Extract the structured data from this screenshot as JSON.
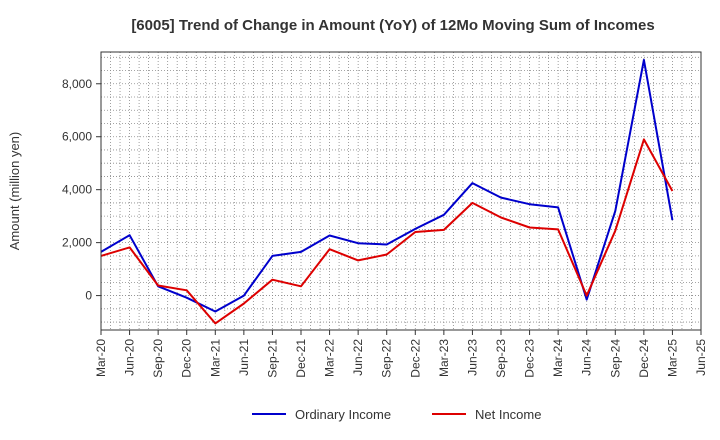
{
  "chart_data": {
    "type": "line",
    "title": "[6005]  Trend of Change in Amount (YoY) of 12Mo Moving Sum of Incomes",
    "ylabel": "Amount (million yen)",
    "xlabel": "",
    "ylim": [
      -1300,
      9200
    ],
    "yticks": [
      0,
      2000,
      4000,
      6000,
      8000
    ],
    "ytick_labels": [
      "0",
      "2,000",
      "4,000",
      "6,000",
      "8,000"
    ],
    "categories": [
      "Mar-20",
      "Jun-20",
      "Sep-20",
      "Dec-20",
      "Mar-21",
      "Jun-21",
      "Sep-21",
      "Dec-21",
      "Mar-22",
      "Jun-22",
      "Sep-22",
      "Dec-22",
      "Mar-23",
      "Jun-23",
      "Sep-23",
      "Dec-23",
      "Mar-24",
      "Jun-24",
      "Sep-24",
      "Dec-24",
      "Mar-25",
      "Jun-25"
    ],
    "grid": true,
    "legend_position": "bottom",
    "series": [
      {
        "name": "Ordinary Income",
        "color": "#0000cc",
        "values": [
          1650,
          2280,
          350,
          -80,
          -600,
          0,
          1500,
          1650,
          2270,
          1980,
          1930,
          2520,
          3050,
          4250,
          3700,
          3450,
          3330,
          -150,
          3200,
          8900,
          2850,
          null
        ]
      },
      {
        "name": "Net Income",
        "color": "#dd0000",
        "values": [
          1500,
          1820,
          380,
          200,
          -1050,
          -300,
          600,
          350,
          1750,
          1330,
          1550,
          2400,
          2480,
          3500,
          2950,
          2570,
          2500,
          0,
          2450,
          5900,
          3950,
          null
        ]
      }
    ]
  }
}
